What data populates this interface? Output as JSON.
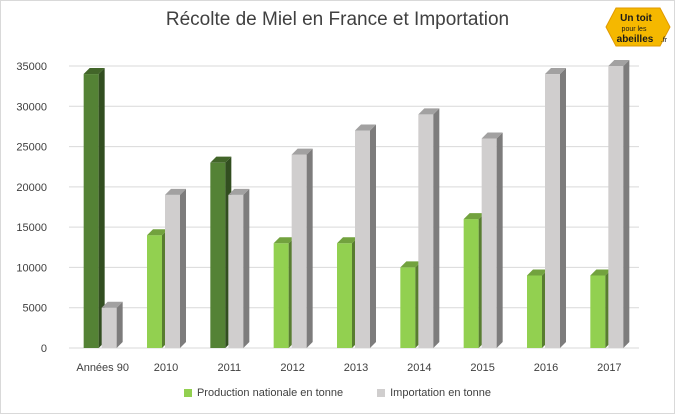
{
  "chart_data": {
    "type": "bar",
    "title": "Récolte de Miel en France et Importation",
    "categories": [
      "Années 90",
      "2010",
      "2011",
      "2012",
      "2013",
      "2014",
      "2015",
      "2016",
      "2017"
    ],
    "series": [
      {
        "name": "Production nationale en tonne",
        "values": [
          34000,
          14000,
          23000,
          13000,
          13000,
          10000,
          16000,
          9000,
          9000
        ],
        "color": "#92d050",
        "highlight_color": "#548235"
      },
      {
        "name": "Importation en tonne",
        "values": [
          5000,
          19000,
          19000,
          24000,
          27000,
          29000,
          26000,
          34000,
          35000
        ],
        "color": "#d0cece"
      }
    ],
    "highlighted_categories": [
      "Années 90",
      "2011"
    ],
    "ylim": [
      0,
      35000
    ],
    "y_ticks": [
      "0",
      "5000",
      "10000",
      "15000",
      "20000",
      "25000",
      "30000",
      "35000"
    ],
    "grid": true,
    "style": "3d-clustered-column",
    "legend_position": "bottom"
  },
  "logo": {
    "line1": "Un toit",
    "line2": "pour les",
    "line3": "abeilles",
    "suffix": ".fr"
  }
}
